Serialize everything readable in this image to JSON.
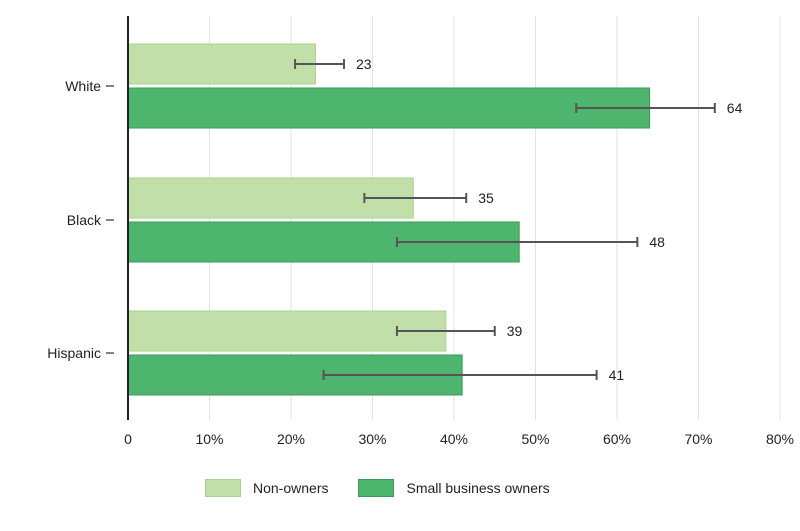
{
  "chart_data": {
    "type": "bar",
    "orientation": "horizontal",
    "title": "",
    "xlabel": "",
    "ylabel": "",
    "categories": [
      "White",
      "Black",
      "Hispanic"
    ],
    "series": [
      {
        "name": "Non-owners",
        "values": [
          23,
          35,
          39
        ],
        "error_low": [
          20.5,
          29,
          33
        ],
        "error_high": [
          26.5,
          41.5,
          45
        ],
        "labels": [
          "23",
          "35",
          "39"
        ],
        "color": "#c1dfa8",
        "stroke": "#a9d08e"
      },
      {
        "name": "Small business owners",
        "values": [
          64,
          48,
          41
        ],
        "error_low": [
          55,
          33,
          24
        ],
        "error_high": [
          72,
          62.5,
          57.5
        ],
        "labels": [
          "64",
          "48",
          "41"
        ],
        "color": "#4db56d",
        "stroke": "#3a9a57"
      }
    ],
    "xlim": [
      0,
      80
    ],
    "xticks": [
      0,
      10,
      20,
      30,
      40,
      50,
      60,
      70,
      80
    ],
    "xtick_labels": [
      "0",
      "10%",
      "20%",
      "30%",
      "40%",
      "50%",
      "60%",
      "70%",
      "80%"
    ],
    "grid": true,
    "legend_position": "bottom"
  }
}
